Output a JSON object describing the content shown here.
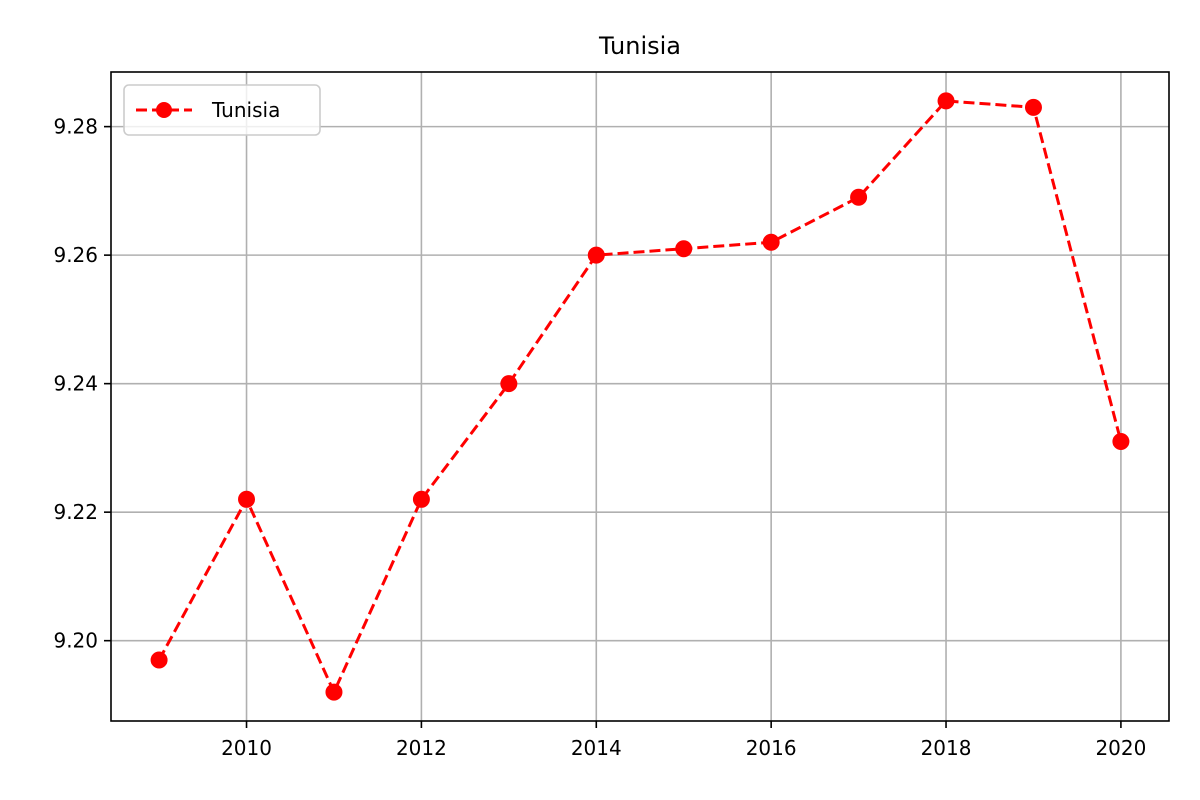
{
  "chart_data": {
    "type": "line",
    "title": "Tunisia",
    "xlabel": "",
    "ylabel": "",
    "x": [
      2009,
      2010,
      2011,
      2012,
      2013,
      2014,
      2015,
      2016,
      2017,
      2018,
      2019,
      2020
    ],
    "series": [
      {
        "name": "Tunisia",
        "values": [
          9.197,
          9.222,
          9.192,
          9.222,
          9.24,
          9.26,
          9.261,
          9.262,
          9.269,
          9.284,
          9.283,
          9.231
        ],
        "color": "#ff0000",
        "line_style": "dashed",
        "marker": "circle"
      }
    ],
    "x_ticks": [
      2010,
      2012,
      2014,
      2016,
      2018,
      2020
    ],
    "x_tick_labels": [
      "2010",
      "2012",
      "2014",
      "2016",
      "2018",
      "2020"
    ],
    "y_ticks": [
      9.2,
      9.22,
      9.24,
      9.26,
      9.28
    ],
    "y_tick_labels": [
      "9.20",
      "9.22",
      "9.24",
      "9.26",
      "9.28"
    ],
    "xlim": [
      2008.45,
      2020.55
    ],
    "ylim": [
      9.1875,
      9.2885
    ],
    "grid": true,
    "legend_position": "top-left"
  }
}
